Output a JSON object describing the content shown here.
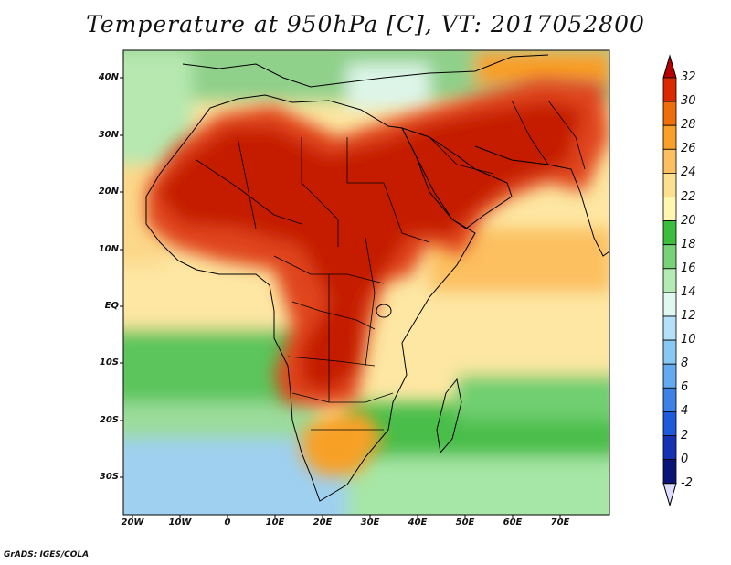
{
  "title": "Temperature at 950hPa [C], VT: 2017052800",
  "credit": "GrADS: IGES/COLA",
  "map": {
    "x_ticks": [
      "20W",
      "10W",
      "0",
      "10E",
      "20E",
      "30E",
      "40E",
      "50E",
      "60E",
      "70E"
    ],
    "y_ticks": [
      "40N",
      "30N",
      "20N",
      "10N",
      "EQ",
      "10S",
      "20S",
      "30S"
    ]
  },
  "colorbar": {
    "labels": [
      "32",
      "30",
      "28",
      "26",
      "24",
      "22",
      "20",
      "18",
      "16",
      "14",
      "12",
      "10",
      "8",
      "6",
      "4",
      "2",
      "0",
      "-2"
    ],
    "colors": [
      "#b40000",
      "#dc2800",
      "#f06e0a",
      "#f8a028",
      "#fcc060",
      "#fde08e",
      "#fff6b0",
      "#3cbe3c",
      "#78d278",
      "#b4eab4",
      "#e1f8f0",
      "#b4e1fa",
      "#8ac8f4",
      "#64aaf0",
      "#3c82e6",
      "#1e5adc",
      "#1432b4",
      "#0a1478",
      "#dcdcff"
    ]
  }
}
